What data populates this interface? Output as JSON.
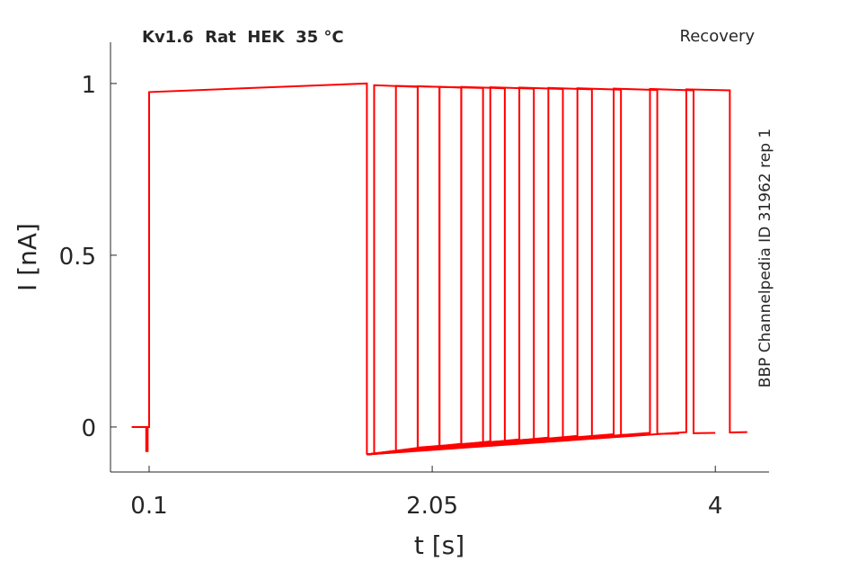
{
  "chart_data": {
    "type": "line",
    "title": "Kv1.6  Rat  HEK  35 °C",
    "subtitle": "Recovery",
    "annotation": "BBP Channelpedia ID 31962 rep 1",
    "x_label": "t [s]",
    "y_label": "I [nA]",
    "xlim": [
      -0.166,
      4.37
    ],
    "ylim": [
      -0.131,
      1.12
    ],
    "xticks": [
      0.1,
      2.05,
      4
    ],
    "yticks": [
      0,
      0.5,
      1
    ],
    "series": [
      {
        "color": "#ff0000",
        "x": [
          -0.02,
          0.08,
          0.08,
          0.09,
          0.09,
          0.1,
          0.1,
          1.6,
          1.6
        ],
        "values": [
          0,
          0,
          -0.07,
          -0.07,
          0,
          0,
          0.975,
          1.0,
          -0.08
        ]
      },
      {
        "color": "#ff0000",
        "x": [
          1.6,
          1.65,
          1.65,
          1.95,
          1.95,
          2.1
        ],
        "values": [
          -0.08,
          -0.077,
          0.995,
          0.99,
          -0.06,
          -0.055
        ]
      },
      {
        "color": "#ff0000",
        "x": [
          1.6,
          1.8,
          1.8,
          2.1,
          2.1,
          2.25
        ],
        "values": [
          -0.08,
          -0.069,
          0.993,
          0.99,
          -0.055,
          -0.05
        ]
      },
      {
        "color": "#ff0000",
        "x": [
          1.6,
          1.95,
          1.95,
          2.25,
          2.25,
          2.4
        ],
        "values": [
          -0.08,
          -0.061,
          0.992,
          0.988,
          -0.05,
          -0.045
        ]
      },
      {
        "color": "#ff0000",
        "x": [
          1.6,
          2.1,
          2.1,
          2.4,
          2.4,
          2.55
        ],
        "values": [
          -0.08,
          -0.055,
          0.99,
          0.987,
          -0.045,
          -0.041
        ]
      },
      {
        "color": "#ff0000",
        "x": [
          1.6,
          2.25,
          2.25,
          2.55,
          2.55,
          2.7
        ],
        "values": [
          -0.08,
          -0.049,
          0.99,
          0.986,
          -0.041,
          -0.037
        ]
      },
      {
        "color": "#ff0000",
        "x": [
          1.6,
          2.45,
          2.45,
          2.75,
          2.75,
          2.9
        ],
        "values": [
          -0.08,
          -0.042,
          0.989,
          0.985,
          -0.036,
          -0.033
        ]
      },
      {
        "color": "#ff0000",
        "x": [
          1.6,
          2.65,
          2.65,
          2.95,
          2.95,
          3.1
        ],
        "values": [
          -0.08,
          -0.036,
          0.988,
          0.984,
          -0.031,
          -0.029
        ]
      },
      {
        "color": "#ff0000",
        "x": [
          1.6,
          2.85,
          2.85,
          3.15,
          3.15,
          3.3
        ],
        "values": [
          -0.08,
          -0.031,
          0.987,
          0.983,
          -0.027,
          -0.025
        ]
      },
      {
        "color": "#ff0000",
        "x": [
          1.6,
          3.05,
          3.05,
          3.35,
          3.35,
          3.5
        ],
        "values": [
          -0.08,
          -0.026,
          0.986,
          0.982,
          -0.023,
          -0.022
        ]
      },
      {
        "color": "#ff0000",
        "x": [
          1.6,
          3.3,
          3.3,
          3.6,
          3.6,
          3.75
        ],
        "values": [
          -0.08,
          -0.021,
          0.985,
          0.981,
          -0.02,
          -0.019
        ]
      },
      {
        "color": "#ff0000",
        "x": [
          1.6,
          3.55,
          3.55,
          3.85,
          3.85,
          4.0
        ],
        "values": [
          -0.08,
          -0.017,
          0.984,
          0.98,
          -0.018,
          -0.017
        ]
      },
      {
        "color": "#ff0000",
        "x": [
          1.6,
          3.8,
          3.8,
          4.1,
          4.1,
          4.22
        ],
        "values": [
          -0.08,
          -0.015,
          0.983,
          0.98,
          -0.016,
          -0.015
        ]
      }
    ]
  }
}
